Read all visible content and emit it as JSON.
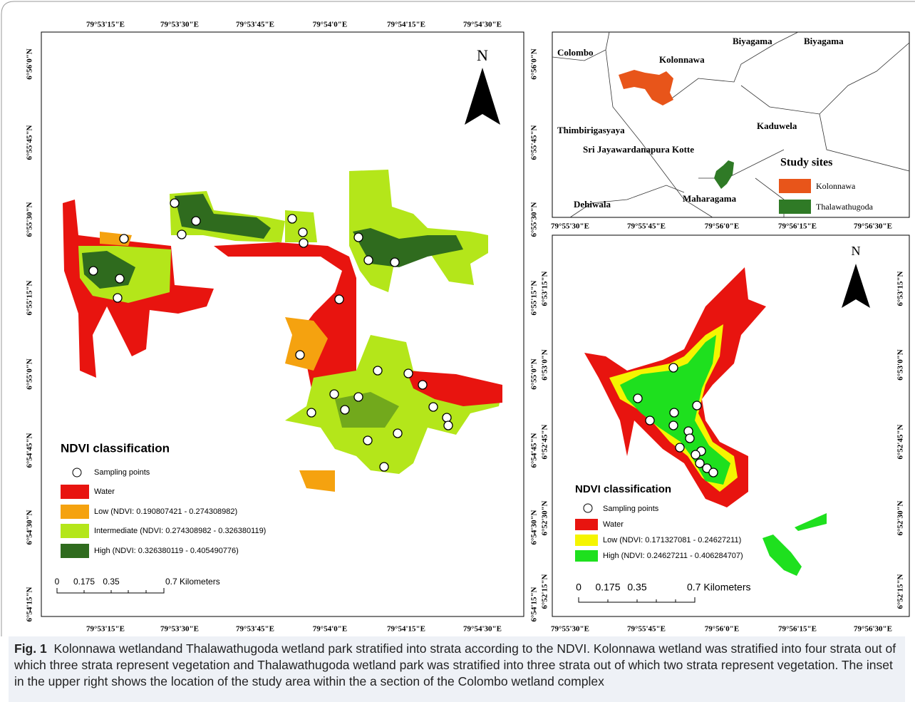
{
  "left_map": {
    "lon_labels": [
      "79°53'15\"E",
      "79°53'30\"E",
      "79°53'45\"E",
      "79°54'0\"E",
      "79°54'15\"E",
      "79°54'30\"E"
    ],
    "lat_labels": [
      "6°56'0\"N",
      "6°55'45\"N",
      "6°55'30\"N",
      "6°55'15\"N",
      "6°55'0\"N",
      "6°54'45\"N",
      "6°54'30\"N",
      "6°54'15\"N"
    ],
    "north": "N",
    "legend": {
      "title": "NDVI classification",
      "points": "Sampling points",
      "items": [
        "Water",
        "Low (NDVI: 0.190807421 - 0.274308982)",
        "Intermediate (NDVI: 0.274308982 - 0.326380119)",
        "High (NDVI: 0.326380119 - 0.405490776)"
      ]
    },
    "scale": [
      "0",
      "0.175",
      "0.35",
      "0.7 Kilometers"
    ]
  },
  "inset": {
    "places": [
      "Colombo",
      "Kolonnawa",
      "Biyagama",
      "Biyagama",
      "Thimbirigasyaya",
      "Kaduwela",
      "Sri Jayawardanapura Kotte",
      "Maharagama",
      "Dehiwala"
    ],
    "legend": {
      "title": "Study sites",
      "items": [
        "Kolonnawa",
        "Thalawathugoda"
      ]
    }
  },
  "right_map": {
    "lon_labels": [
      "79°55'30\"E",
      "79°55'45\"E",
      "79°56'0\"E",
      "79°56'15\"E",
      "79°56'30\"E"
    ],
    "lat_labels": [
      "6°53'15\"N",
      "6°53'0\"N",
      "6°52'45\"N",
      "6°52'30\"N",
      "6°52'15\"N"
    ],
    "north": "N",
    "legend": {
      "title": "NDVI classification",
      "points": "Sampling points",
      "items": [
        "Water",
        "Low (NDVI: 0.171327081 - 0.24627211)",
        "High (NDVI: 0.24627211 - 0.406284707)"
      ]
    },
    "scale": [
      "0",
      "0.175",
      "0.35",
      "0.7 Kilometers"
    ]
  },
  "caption": {
    "label": "Fig. 1",
    "text": "Kolonnawa wetlandand Thalawathugoda wetland park stratified into strata according to the NDVI. Kolonnawa wetland was stratified into four strata out of which three strata represent vegetation and Thalawathugoda wetland park was stratified into three strata out of which two strata represent vegetation. The inset in the upper right shows the location of the study area within the a section of the Colombo wetland complex"
  }
}
